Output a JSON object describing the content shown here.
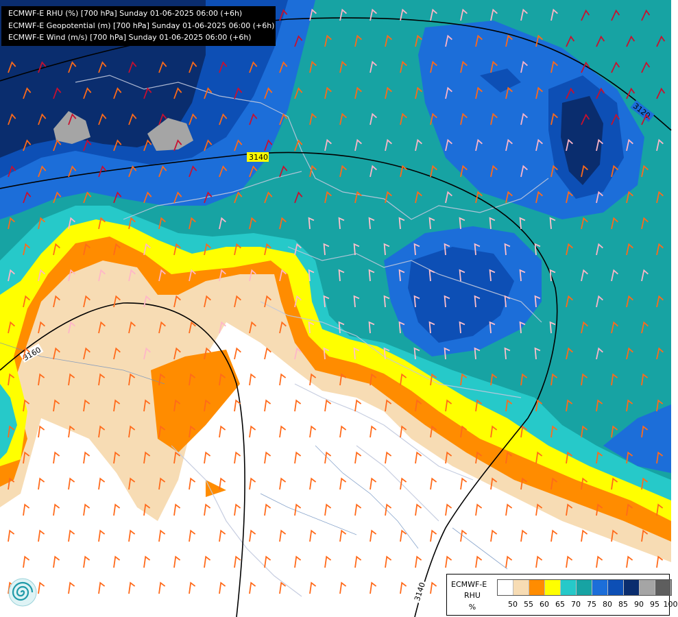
{
  "title_lines": [
    "ECMWF-E RHU (%) [700 hPa] Sunday 01-06-2025 06:00 (+6h)",
    "ECMWF-E Geopotential (m) [700 hPa] Sunday 01-06-2025 06:00 (+6h)",
    "ECMWF-E Wind (m/s) [700 hPa] Sunday 01-06-2025 06:00 (+6h)"
  ],
  "legend": {
    "model": "ECMWF-E",
    "variable": "RHU",
    "unit": "%",
    "levels": [
      "50",
      "55",
      "60",
      "65",
      "70",
      "75",
      "80",
      "85",
      "90",
      "95",
      "100"
    ],
    "colors": [
      "#ffffff",
      "#f7dcb4",
      "#ff8c00",
      "#ffff00",
      "#26c9c9",
      "#17a3a3",
      "#1c6ed9",
      "#0d4fb5",
      "#0a2d6e",
      "#a5a5a5",
      "#5e5e5e"
    ]
  },
  "contour_labels": [
    "3120",
    "3140",
    "3160",
    "3140"
  ],
  "logo": {
    "icon": "swirl-logo-icon"
  }
}
